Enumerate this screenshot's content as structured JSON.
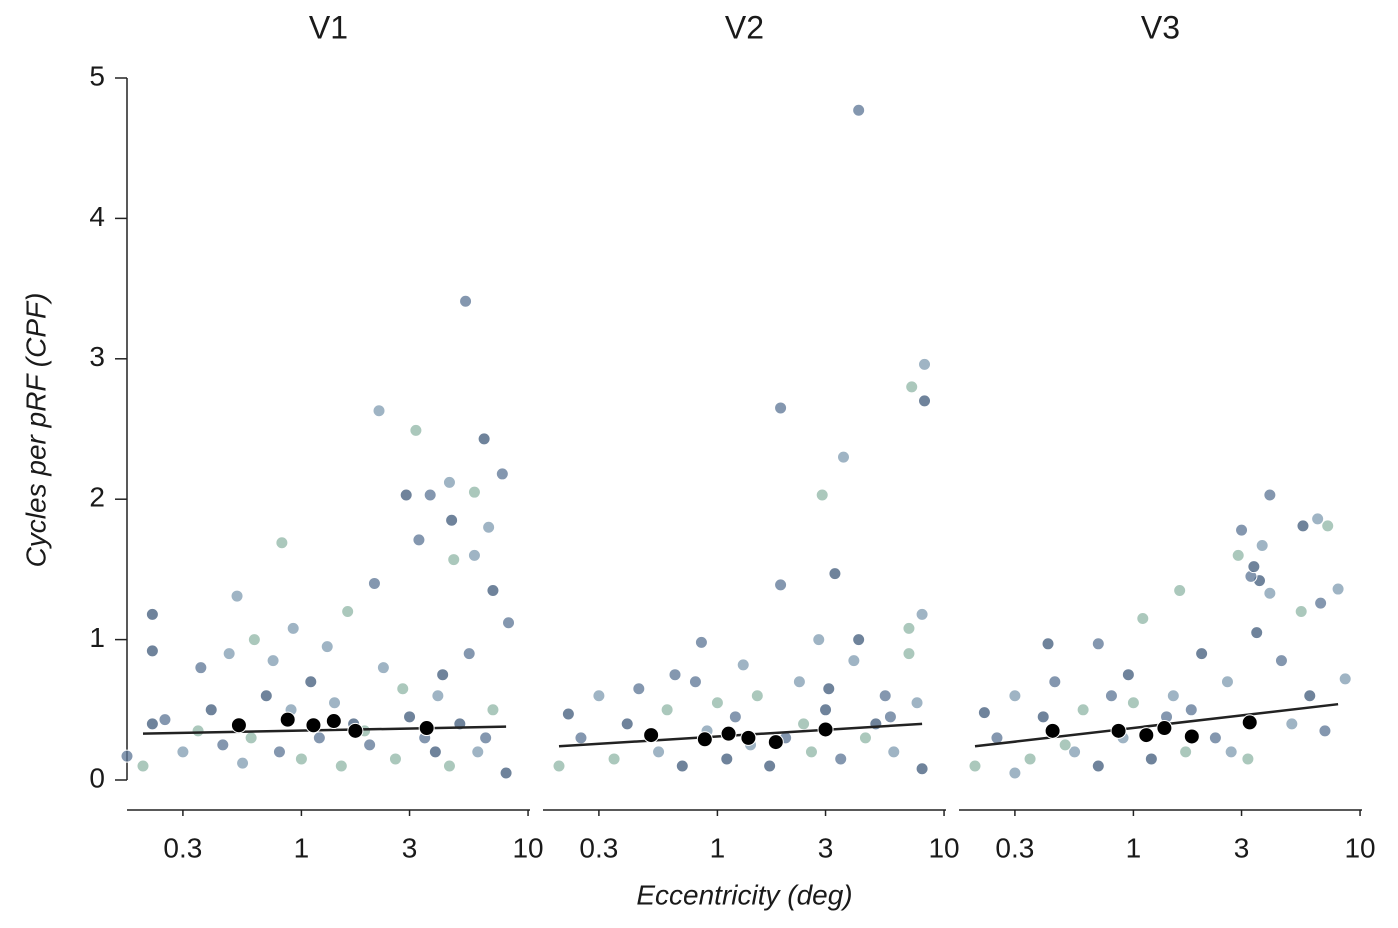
{
  "chart_data": [
    {
      "type": "scatter",
      "title": "V1",
      "y_label": "Cycles per pRF (CPF)",
      "log_x": true,
      "xlim": [
        0.17,
        10.2
      ],
      "xticks": [
        0.3,
        1,
        3,
        10
      ],
      "ylim": [
        0,
        5
      ],
      "yticks": [
        0,
        1,
        2,
        3,
        4,
        5
      ],
      "colors": [
        "#5b7494",
        "#7f9bb0",
        "#8fb5a5",
        "#3f5a7a"
      ],
      "x": [
        5.3,
        2.2,
        3.2,
        6.4,
        7.7,
        4.5,
        5.8,
        2.9,
        3.7,
        6.7,
        0.82,
        4.6,
        3.3,
        5.8,
        4.7,
        7.0,
        2.1,
        0.52,
        1.6,
        0.22,
        8.2,
        0.92,
        0.62,
        0.22,
        0.36,
        0.48,
        0.2,
        0.22,
        0.25,
        0.3,
        0.35,
        0.4,
        0.45,
        0.55,
        0.6,
        0.7,
        0.8,
        0.9,
        1.0,
        1.1,
        1.2,
        1.4,
        1.5,
        1.7,
        2.0,
        2.3,
        2.6,
        3.0,
        3.5,
        4.0,
        4.5,
        5.0,
        5.5,
        6.0,
        7.0,
        8.0,
        0.17,
        1.3,
        2.8,
        4.2,
        6.5,
        0.75,
        1.9,
        3.9
      ],
      "values": [
        3.41,
        2.63,
        2.49,
        2.43,
        2.18,
        2.12,
        2.05,
        2.03,
        2.03,
        1.8,
        1.69,
        1.85,
        1.71,
        1.6,
        1.57,
        1.35,
        1.4,
        1.31,
        1.2,
        1.18,
        1.12,
        1.08,
        1.0,
        0.92,
        0.8,
        0.9,
        0.1,
        0.4,
        0.43,
        0.2,
        0.35,
        0.5,
        0.25,
        0.12,
        0.3,
        0.6,
        0.2,
        0.5,
        0.15,
        0.7,
        0.3,
        0.55,
        0.1,
        0.4,
        0.25,
        0.8,
        0.15,
        0.45,
        0.3,
        0.6,
        0.1,
        0.4,
        0.9,
        0.2,
        0.5,
        0.05,
        0.17,
        0.95,
        0.65,
        0.75,
        0.3,
        0.85,
        0.35,
        0.2
      ],
      "mean_x": [
        0.53,
        0.87,
        1.13,
        1.39,
        1.73,
        3.57
      ],
      "mean_values": [
        0.39,
        0.43,
        0.39,
        0.42,
        0.35,
        0.37
      ],
      "fit_x": [
        0.2,
        8.0
      ],
      "fit_values": [
        0.33,
        0.38
      ]
    },
    {
      "type": "scatter",
      "title": "V2",
      "x_label": "Eccentricity (deg)",
      "log_x": true,
      "xlim": [
        0.17,
        10.2
      ],
      "xticks": [
        0.3,
        1,
        3,
        10
      ],
      "ylim": [
        0,
        5
      ],
      "colors": [
        "#5b7494",
        "#7f9bb0",
        "#8fb5a5",
        "#3f5a7a"
      ],
      "x": [
        4.2,
        8.2,
        7.2,
        8.2,
        1.9,
        3.6,
        2.9,
        3.3,
        1.9,
        8.0,
        7.0,
        4.2,
        0.85,
        2.8,
        0.2,
        0.22,
        0.25,
        0.3,
        0.35,
        0.4,
        0.45,
        0.55,
        0.6,
        0.7,
        0.8,
        0.9,
        1.0,
        1.1,
        1.2,
        1.4,
        1.5,
        1.7,
        2.0,
        2.3,
        2.6,
        3.0,
        3.5,
        4.0,
        4.5,
        5.0,
        5.5,
        6.0,
        7.0,
        8.0,
        0.65,
        1.3,
        2.4,
        3.1,
        5.8,
        7.6
      ],
      "values": [
        4.77,
        2.96,
        2.8,
        2.7,
        2.65,
        2.3,
        2.03,
        1.47,
        1.39,
        1.18,
        1.08,
        1.0,
        0.98,
        1.0,
        0.1,
        0.47,
        0.3,
        0.6,
        0.15,
        0.4,
        0.65,
        0.2,
        0.5,
        0.1,
        0.7,
        0.35,
        0.55,
        0.15,
        0.45,
        0.25,
        0.6,
        0.1,
        0.3,
        0.7,
        0.2,
        0.5,
        0.15,
        0.85,
        0.3,
        0.4,
        0.6,
        0.2,
        0.9,
        0.08,
        0.75,
        0.82,
        0.4,
        0.65,
        0.45,
        0.55
      ],
      "mean_x": [
        0.51,
        0.88,
        1.12,
        1.37,
        1.81,
        3.0
      ],
      "mean_values": [
        0.32,
        0.29,
        0.33,
        0.3,
        0.27,
        0.36
      ],
      "fit_x": [
        0.2,
        8.0
      ],
      "fit_values": [
        0.24,
        0.4
      ]
    },
    {
      "type": "scatter",
      "title": "V3",
      "log_x": true,
      "xlim": [
        0.17,
        10.2
      ],
      "xticks": [
        0.3,
        1,
        3,
        10
      ],
      "ylim": [
        0,
        5
      ],
      "colors": [
        "#5b7494",
        "#7f9bb0",
        "#8fb5a5",
        "#3f5a7a"
      ],
      "x": [
        4.0,
        6.5,
        7.2,
        5.6,
        3.0,
        3.7,
        2.9,
        3.6,
        3.3,
        8.0,
        1.6,
        3.4,
        6.7,
        4.0,
        1.1,
        0.42,
        0.7,
        8.6,
        0.2,
        0.22,
        0.25,
        0.3,
        0.35,
        0.4,
        0.45,
        0.55,
        0.6,
        0.7,
        0.8,
        0.9,
        1.0,
        1.2,
        1.4,
        1.5,
        1.7,
        2.0,
        2.3,
        2.6,
        3.2,
        3.5,
        4.5,
        5.0,
        5.5,
        6.0,
        7.0,
        0.3,
        0.5,
        0.95,
        1.8,
        2.7
      ],
      "values": [
        2.03,
        1.86,
        1.81,
        1.81,
        1.78,
        1.67,
        1.6,
        1.42,
        1.45,
        1.36,
        1.35,
        1.52,
        1.26,
        1.33,
        1.15,
        0.97,
        0.97,
        0.72,
        0.1,
        0.48,
        0.3,
        0.6,
        0.15,
        0.45,
        0.7,
        0.2,
        0.5,
        0.1,
        0.6,
        0.3,
        0.55,
        0.15,
        0.45,
        0.6,
        0.2,
        0.9,
        0.3,
        0.7,
        0.15,
        1.05,
        0.85,
        0.4,
        1.2,
        0.6,
        0.35,
        0.05,
        0.25,
        0.75,
        0.5,
        0.2
      ],
      "mean_x": [
        0.44,
        0.86,
        1.14,
        1.37,
        1.81,
        3.26
      ],
      "mean_values": [
        0.35,
        0.35,
        0.32,
        0.37,
        0.31,
        0.41
      ],
      "fit_x": [
        0.2,
        8.0
      ],
      "fit_values": [
        0.24,
        0.54
      ]
    }
  ]
}
